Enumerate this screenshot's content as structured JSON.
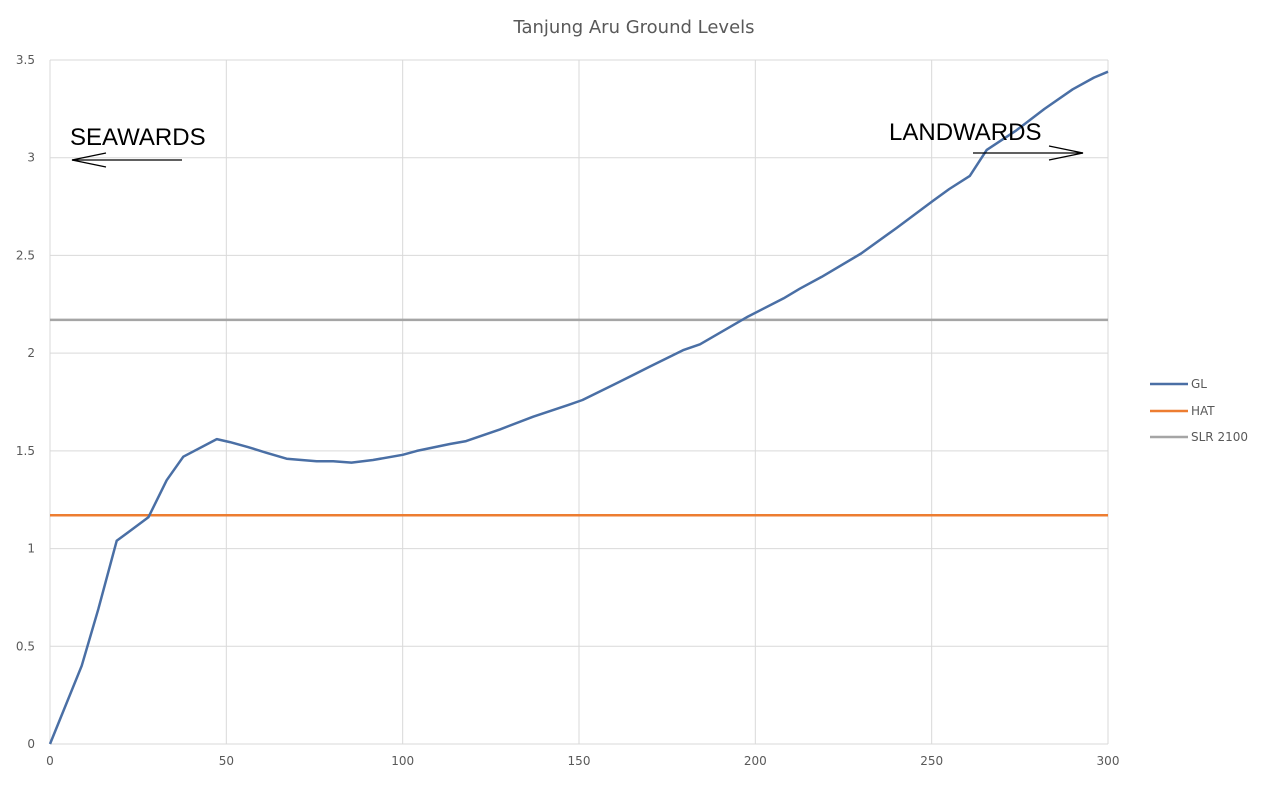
{
  "chart_data": {
    "type": "line",
    "title": "Tanjung Aru Ground Levels",
    "xlabel": "",
    "ylabel": "",
    "xlim": [
      0,
      300
    ],
    "ylim": [
      0,
      3.5
    ],
    "x_ticks": [
      "0",
      "50",
      "100",
      "150",
      "200",
      "250",
      "300"
    ],
    "y_ticks": [
      "0",
      "0.5",
      "1",
      "1.5",
      "2",
      "2.5",
      "3",
      "3.5"
    ],
    "grid": true,
    "legend_position": "right",
    "series": [
      {
        "name": "GL",
        "color": "#4A6FA5",
        "points": [
          [
            0,
            0
          ],
          [
            9,
            0.4
          ],
          [
            13.7,
            0.69
          ],
          [
            18.9,
            1.04
          ],
          [
            27.9,
            1.16
          ],
          [
            33.1,
            1.35
          ],
          [
            37.8,
            1.47
          ],
          [
            47.3,
            1.56
          ],
          [
            51,
            1.545
          ],
          [
            56,
            1.52
          ],
          [
            61.4,
            1.49
          ],
          [
            67.1,
            1.46
          ],
          [
            75.6,
            1.447
          ],
          [
            80.3,
            1.447
          ],
          [
            85.5,
            1.44
          ],
          [
            91.6,
            1.453
          ],
          [
            100,
            1.48
          ],
          [
            104,
            1.5
          ],
          [
            113.4,
            1.535
          ],
          [
            118,
            1.55
          ],
          [
            127.6,
            1.61
          ],
          [
            137,
            1.675
          ],
          [
            147,
            1.735
          ],
          [
            151,
            1.76
          ],
          [
            160,
            1.84
          ],
          [
            170,
            1.93
          ],
          [
            179.5,
            2.015
          ],
          [
            184.3,
            2.045
          ],
          [
            197.9,
            2.187
          ],
          [
            208,
            2.28
          ],
          [
            212.6,
            2.33
          ],
          [
            218.8,
            2.39
          ],
          [
            230,
            2.51
          ],
          [
            240,
            2.64
          ],
          [
            250.4,
            2.78
          ],
          [
            255,
            2.84
          ],
          [
            260.8,
            2.907
          ],
          [
            265.6,
            3.04
          ],
          [
            274,
            3.14
          ],
          [
            282,
            3.25
          ],
          [
            290,
            3.35
          ],
          [
            296,
            3.41
          ],
          [
            300,
            3.44
          ]
        ]
      },
      {
        "name": "HAT",
        "color": "#ED7D31",
        "points": [
          [
            0,
            1.17
          ],
          [
            300,
            1.17
          ]
        ]
      },
      {
        "name": "SLR 2100",
        "color": "#A5A5A5",
        "points": [
          [
            0,
            2.17
          ],
          [
            300,
            2.17
          ]
        ]
      }
    ],
    "annotations": [
      {
        "text": "SEAWARDS",
        "arrow": "left"
      },
      {
        "text": "LANDWARDS",
        "arrow": "right"
      }
    ]
  }
}
